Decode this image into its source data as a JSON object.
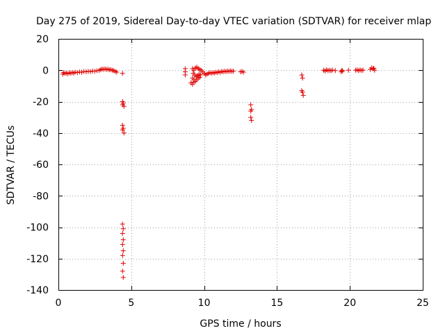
{
  "chart_data": {
    "type": "scatter",
    "title": "Day 275 of 2019, Sidereal Day-to-day VTEC variation (SDTVAR) for receiver mlap",
    "xlabel": "GPS time / hours",
    "ylabel": "SDTVAR / TECUs",
    "xlim": [
      0,
      25
    ],
    "ylim": [
      -140,
      20
    ],
    "xticks": [
      0,
      5,
      10,
      15,
      20,
      25
    ],
    "yticks": [
      20,
      0,
      -20,
      -40,
      -60,
      -80,
      -100,
      -120,
      -140
    ],
    "grid": true,
    "marker": "+",
    "series": [
      {
        "name": "SDTVAR",
        "color": "#e00000",
        "points": [
          [
            0.3,
            -2.5
          ],
          [
            0.35,
            -1.5
          ],
          [
            0.45,
            -2
          ],
          [
            0.55,
            -1.8
          ],
          [
            0.65,
            -2.2
          ],
          [
            0.75,
            -1.6
          ],
          [
            0.85,
            -1.9
          ],
          [
            0.95,
            -1.5
          ],
          [
            1.05,
            -1.8
          ],
          [
            1.15,
            -1.2
          ],
          [
            1.3,
            -1.5
          ],
          [
            1.45,
            -1.1
          ],
          [
            1.6,
            -1.3
          ],
          [
            1.75,
            -0.8
          ],
          [
            1.9,
            -1
          ],
          [
            2.05,
            -0.7
          ],
          [
            2.2,
            -0.9
          ],
          [
            2.35,
            -0.5
          ],
          [
            2.5,
            -0.6
          ],
          [
            2.65,
            -0.3
          ],
          [
            2.8,
            -0.1
          ],
          [
            2.9,
            0.4
          ],
          [
            3.0,
            0.8
          ],
          [
            3.1,
            0.6
          ],
          [
            3.2,
            0.9
          ],
          [
            3.3,
            0.5
          ],
          [
            3.4,
            0.7
          ],
          [
            3.5,
            0.3
          ],
          [
            3.6,
            0.4
          ],
          [
            3.7,
            0
          ],
          [
            3.8,
            -0.2
          ],
          [
            3.9,
            -0.8
          ],
          [
            4.0,
            -1.2
          ],
          [
            4.4,
            -2
          ],
          [
            4.4,
            -20
          ],
          [
            4.4,
            -22
          ],
          [
            4.45,
            -21
          ],
          [
            4.5,
            -23
          ],
          [
            4.4,
            -35
          ],
          [
            4.45,
            -37
          ],
          [
            4.4,
            -38
          ],
          [
            4.5,
            -40
          ],
          [
            4.4,
            -98
          ],
          [
            4.45,
            -101
          ],
          [
            4.4,
            -104
          ],
          [
            4.45,
            -108
          ],
          [
            4.4,
            -111
          ],
          [
            4.45,
            -115
          ],
          [
            4.4,
            -118
          ],
          [
            4.45,
            -123
          ],
          [
            4.4,
            -128
          ],
          [
            4.45,
            -132
          ],
          [
            8.7,
            1
          ],
          [
            8.7,
            -1
          ],
          [
            8.7,
            -3
          ],
          [
            9.2,
            1
          ],
          [
            9.3,
            0
          ],
          [
            9.4,
            1.5
          ],
          [
            9.5,
            2
          ],
          [
            9.6,
            1
          ],
          [
            9.7,
            0.5
          ],
          [
            9.8,
            0
          ],
          [
            9.25,
            -2
          ],
          [
            9.35,
            -3
          ],
          [
            9.45,
            -4
          ],
          [
            9.55,
            -3.5
          ],
          [
            9.65,
            -2.5
          ],
          [
            9.75,
            -3
          ],
          [
            9.2,
            -5
          ],
          [
            9.3,
            -6
          ],
          [
            9.4,
            -7
          ],
          [
            9.5,
            -6
          ],
          [
            9.6,
            -5
          ],
          [
            9.7,
            -4.5
          ],
          [
            9.1,
            -8
          ],
          [
            9.2,
            -9
          ],
          [
            9.3,
            -7.5
          ],
          [
            9.9,
            -1
          ],
          [
            10.0,
            -2
          ],
          [
            10.1,
            -3
          ],
          [
            10.2,
            -2.5
          ],
          [
            10.3,
            -2
          ],
          [
            10.4,
            -1.5
          ],
          [
            10.5,
            -2
          ],
          [
            10.6,
            -1.5
          ],
          [
            10.7,
            -1.8
          ],
          [
            10.8,
            -1.2
          ],
          [
            10.9,
            -1.5
          ],
          [
            11.0,
            -1
          ],
          [
            11.1,
            -1.3
          ],
          [
            11.2,
            -0.8
          ],
          [
            11.3,
            -1
          ],
          [
            11.4,
            -0.6
          ],
          [
            11.5,
            -0.9
          ],
          [
            11.6,
            -0.5
          ],
          [
            11.7,
            -0.8
          ],
          [
            11.8,
            -0.4
          ],
          [
            11.9,
            -0.7
          ],
          [
            12.0,
            -0.5
          ],
          [
            12.5,
            -1
          ],
          [
            12.6,
            -0.8
          ],
          [
            12.7,
            -1.2
          ],
          [
            13.2,
            -22
          ],
          [
            13.2,
            -26
          ],
          [
            13.25,
            -25
          ],
          [
            13.2,
            -30
          ],
          [
            13.25,
            -32
          ],
          [
            16.7,
            -3
          ],
          [
            16.75,
            -5
          ],
          [
            16.7,
            -13
          ],
          [
            16.75,
            -14
          ],
          [
            16.8,
            -16
          ],
          [
            18.2,
            0
          ],
          [
            18.3,
            -0.5
          ],
          [
            18.4,
            0.3
          ],
          [
            18.5,
            -0.2
          ],
          [
            18.6,
            0
          ],
          [
            18.7,
            -0.3
          ],
          [
            18.8,
            0.1
          ],
          [
            19.0,
            -0.2
          ],
          [
            19.4,
            -1
          ],
          [
            19.45,
            0
          ],
          [
            19.5,
            -0.5
          ],
          [
            19.9,
            0
          ],
          [
            20.4,
            0
          ],
          [
            20.5,
            0.3
          ],
          [
            20.6,
            -0.2
          ],
          [
            20.7,
            0.2
          ],
          [
            20.8,
            -0.1
          ],
          [
            20.9,
            0.1
          ],
          [
            21.4,
            0.5
          ],
          [
            21.5,
            1.5
          ],
          [
            21.6,
            1
          ],
          [
            21.7,
            0
          ],
          [
            21.65,
            1.2
          ]
        ]
      }
    ]
  }
}
